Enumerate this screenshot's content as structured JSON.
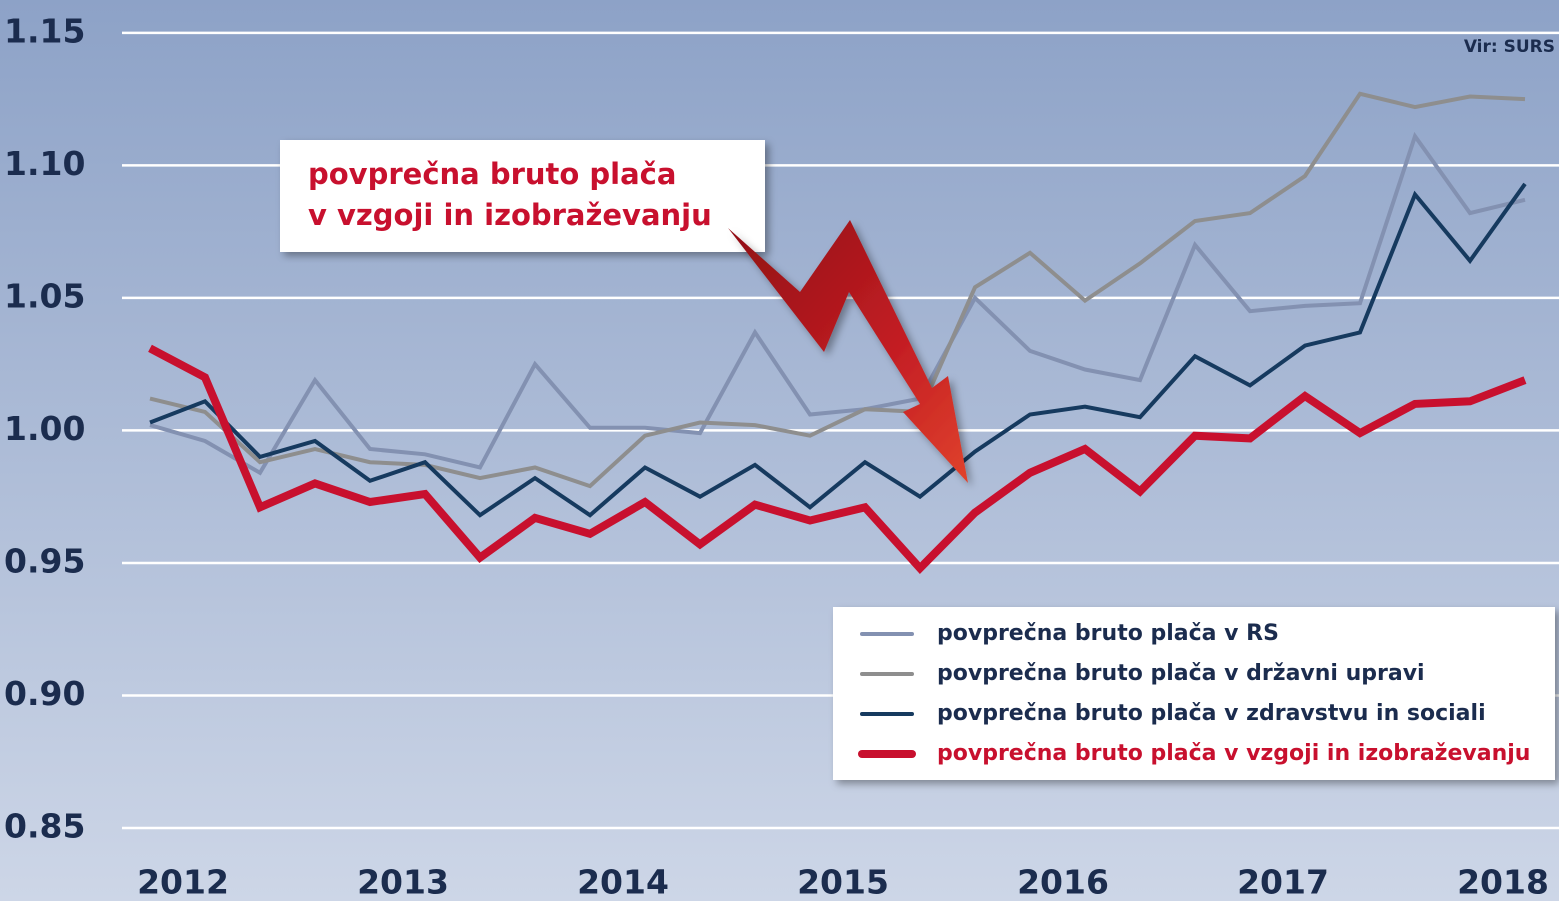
{
  "chart_data": {
    "type": "line",
    "source": "Vir: SURS",
    "annotation": [
      "povprečna bruto plača",
      "v vzgoji in izobraževanju"
    ],
    "x": [
      2011.85,
      2012.1,
      2012.35,
      2012.6,
      2012.85,
      2013.1,
      2013.35,
      2013.6,
      2013.85,
      2014.1,
      2014.35,
      2014.6,
      2014.85,
      2015.1,
      2015.35,
      2015.6,
      2015.85,
      2016.1,
      2016.35,
      2016.6,
      2016.85,
      2017.1,
      2017.35,
      2017.6,
      2017.85,
      2018.1
    ],
    "xlim": [
      2011.5,
      2018.2
    ],
    "xticks": [
      2012,
      2013,
      2014,
      2015,
      2016,
      2017,
      2018
    ],
    "ylim": [
      0.83,
      1.159
    ],
    "yticks": [
      0.85,
      {
        "value": 0.9,
        "label": "0.90"
      },
      0.95,
      {
        "value": 1.0,
        "label": "1.00"
      },
      1.05,
      {
        "value": 1.1,
        "label": "1.10"
      },
      1.15
    ],
    "grid": true,
    "legend": "bottom-right",
    "series": [
      {
        "name": "povprečna bruto plača v RS",
        "color": "#8391b1",
        "values": [
          1.002,
          0.996,
          0.984,
          1.019,
          0.993,
          0.991,
          0.986,
          1.025,
          1.001,
          1.001,
          0.999,
          1.037,
          1.006,
          1.008,
          1.012,
          1.05,
          1.03,
          1.023,
          1.019,
          1.07,
          1.045,
          1.047,
          1.048,
          1.111,
          1.082,
          1.087
        ]
      },
      {
        "name": "povprečna bruto plača v državni upravi",
        "color": "#8e8e8e",
        "values": [
          1.012,
          1.007,
          0.988,
          0.993,
          0.988,
          0.987,
          0.982,
          0.986,
          0.979,
          0.998,
          1.003,
          1.002,
          0.998,
          1.008,
          1.007,
          1.054,
          1.067,
          1.049,
          1.063,
          1.079,
          1.082,
          1.096,
          1.127,
          1.122,
          1.126,
          1.125
        ]
      },
      {
        "name": "povprečna bruto plača v zdravstvu in sociali",
        "color": "#163a5f",
        "values": [
          1.003,
          1.011,
          0.99,
          0.996,
          0.981,
          0.988,
          0.968,
          0.982,
          0.968,
          0.986,
          0.975,
          0.987,
          0.971,
          0.988,
          0.975,
          0.992,
          1.006,
          1.009,
          1.005,
          1.028,
          1.017,
          1.032,
          1.037,
          1.089,
          1.064,
          1.093
        ]
      },
      {
        "name": "povprečna bruto plača v vzgoji in izobraževanju",
        "color": "#c8102e",
        "values": [
          1.031,
          1.02,
          0.971,
          0.98,
          0.973,
          0.976,
          0.952,
          0.967,
          0.961,
          0.973,
          0.957,
          0.972,
          0.966,
          0.971,
          0.948,
          0.969,
          0.984,
          0.993,
          0.977,
          0.998,
          0.997,
          1.013,
          0.999,
          1.01,
          1.011,
          1.019
        ]
      }
    ]
  }
}
